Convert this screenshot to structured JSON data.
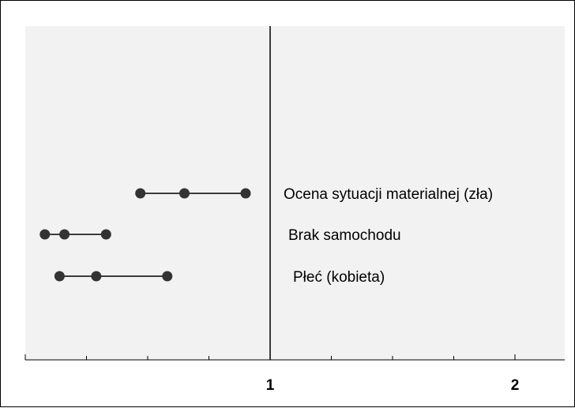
{
  "chart_data": {
    "type": "scatter",
    "title": "",
    "xlabel": "",
    "ylabel": "",
    "xlim": [
      0.01,
      2.2
    ],
    "reference_line_x": 1,
    "x_ticks": [
      1,
      2
    ],
    "x_tick_labels": [
      "1",
      "2"
    ],
    "grid": false,
    "legend": "none",
    "series": [
      {
        "name": "Ocena sytuacji materialnej (zła)",
        "lower": 0.47,
        "estimate": 0.65,
        "upper": 0.9
      },
      {
        "name": "Brak samochodu",
        "lower": 0.08,
        "estimate": 0.16,
        "upper": 0.33
      },
      {
        "name": "Płeć (kobieta)",
        "lower": 0.14,
        "estimate": 0.29,
        "upper": 0.58
      }
    ],
    "colors": {
      "plot_background": "#f2f2f2",
      "marker": "#333333",
      "line": "#000000"
    }
  }
}
